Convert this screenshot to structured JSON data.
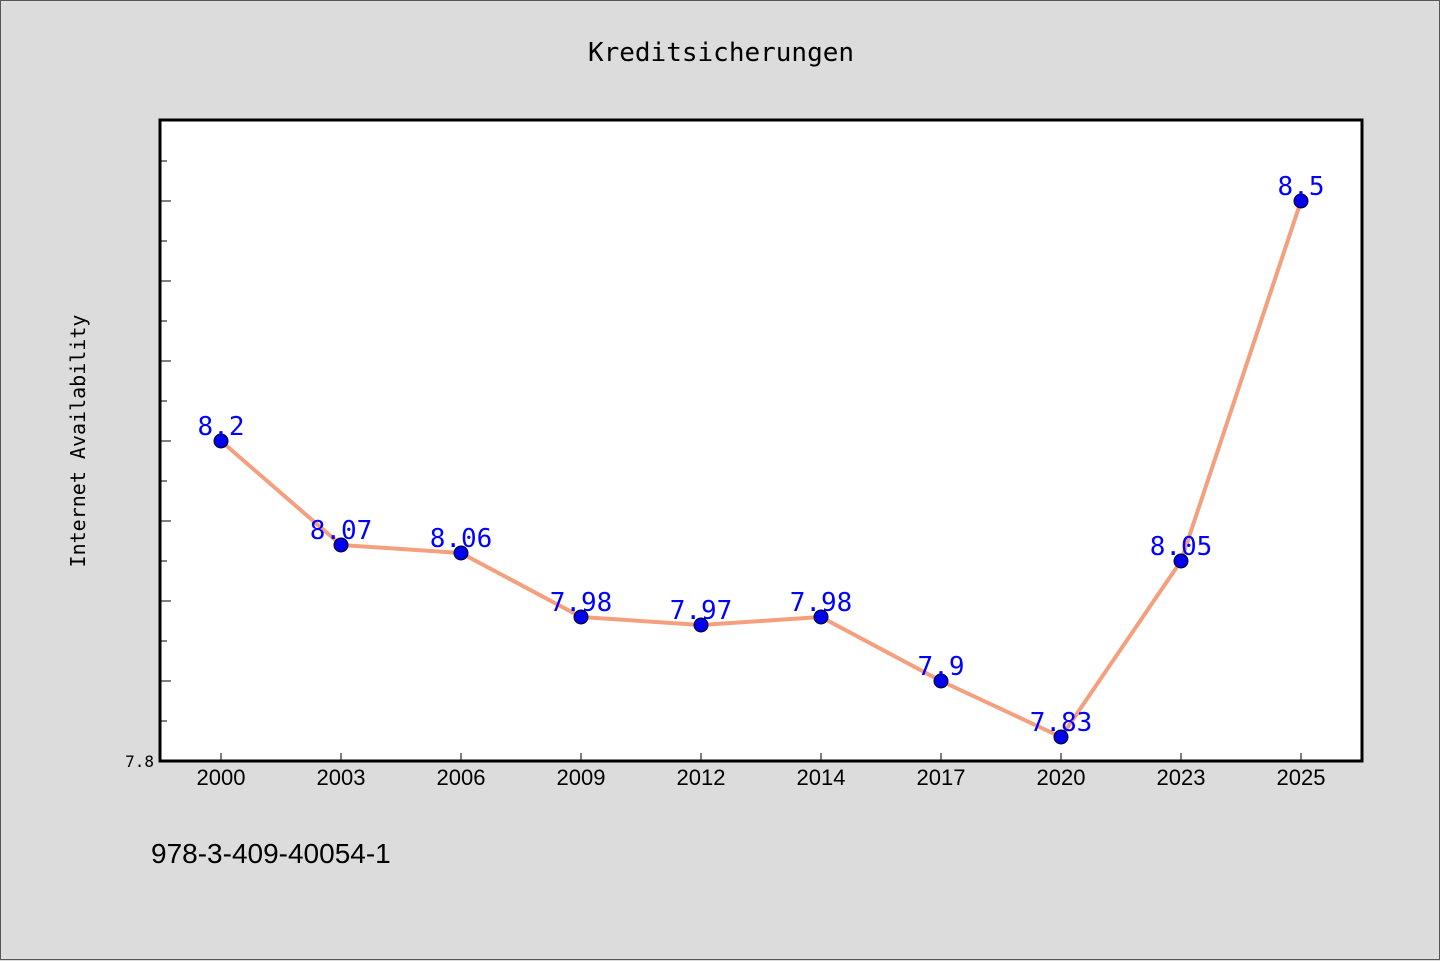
{
  "chart_data": {
    "type": "line",
    "title": "Kreditsicherungen",
    "xlabel": "",
    "ylabel": "Internet Availability",
    "categories": [
      "2000",
      "2003",
      "2006",
      "2009",
      "2012",
      "2014",
      "2017",
      "2020",
      "2023",
      "2025"
    ],
    "series": [
      {
        "values": [
          8.2,
          8.07,
          8.06,
          7.98,
          7.97,
          7.98,
          7.9,
          7.83,
          8.05,
          8.5
        ]
      }
    ],
    "data_labels": [
      "8.2",
      "8.07",
      "8.06",
      "7.98",
      "7.97",
      "7.98",
      "7.9",
      "7.83",
      "8.05",
      "8.5"
    ],
    "ylim": [
      7.8,
      8.6
    ],
    "yticks": [
      "7.8"
    ],
    "grid": false,
    "colors": {
      "line": "#f4a07e",
      "marker": "#0000ee",
      "data_label": "#0000ff",
      "background": "#dcdcdc",
      "plot_background": "#ffffff"
    }
  },
  "footer": {
    "isbn": "978-3-409-40054-1"
  }
}
